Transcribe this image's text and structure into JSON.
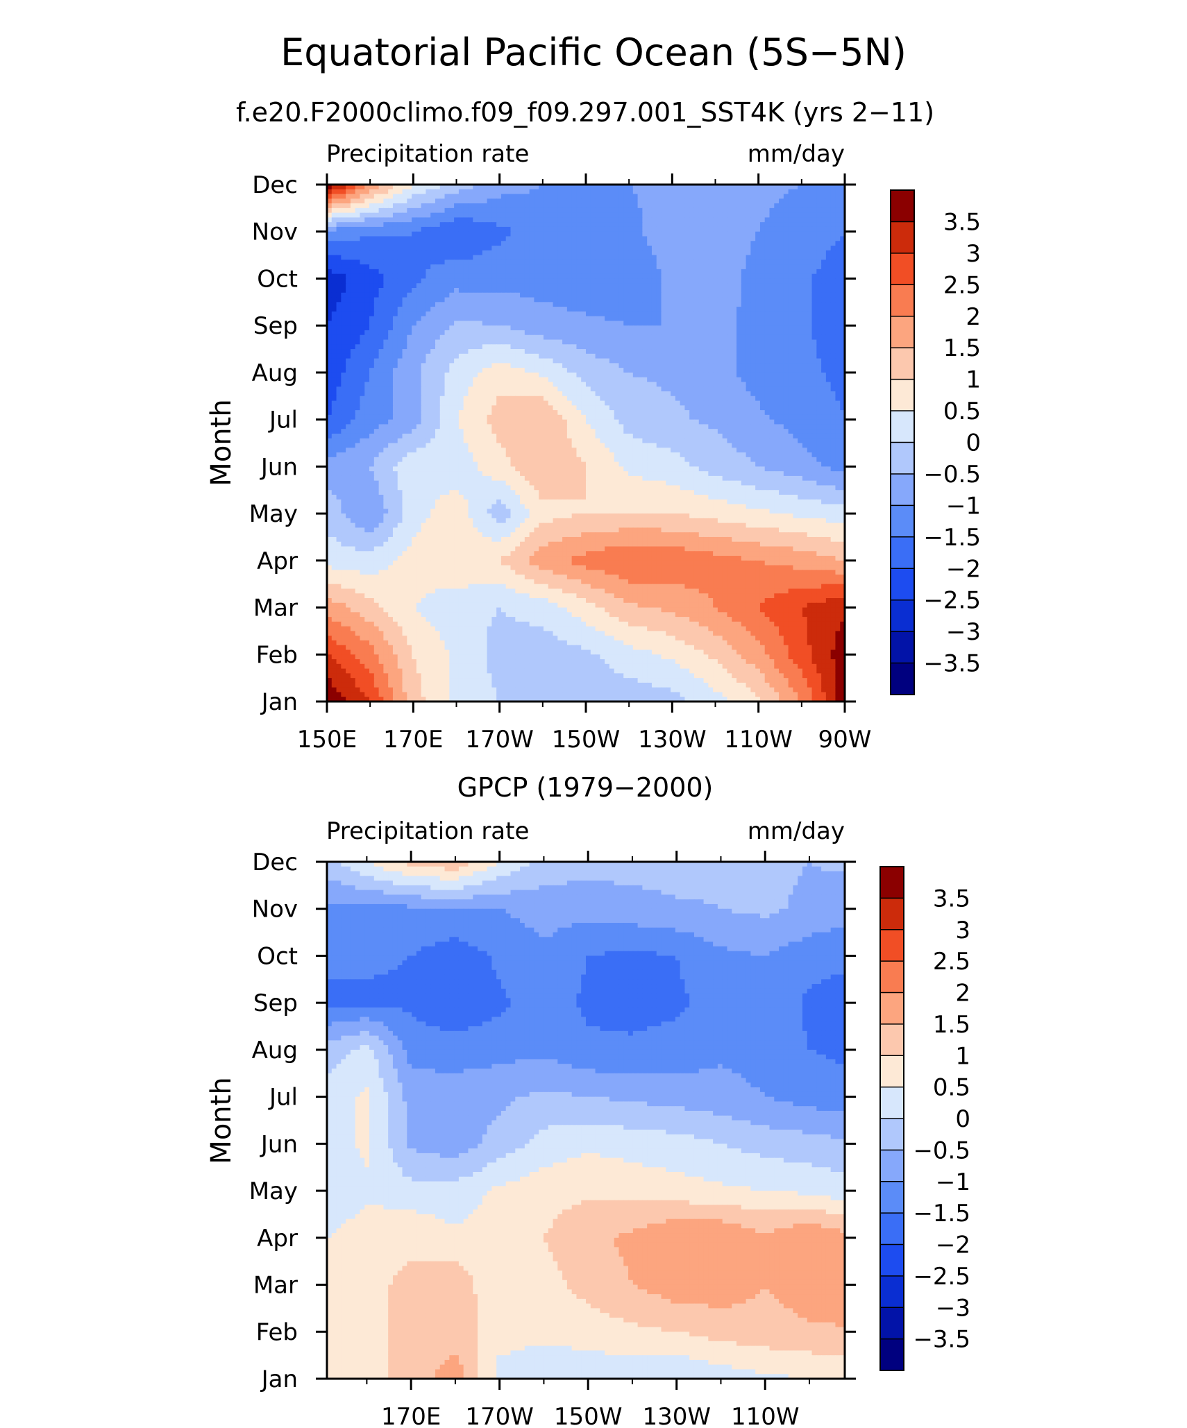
{
  "figure": {
    "title": "Equatorial Pacific Ocean (5S−5N)"
  },
  "chart_data": [
    {
      "type": "heatmap",
      "title": "f.e20.F2000climo.f09_f09.297.001_SST4K (yrs 2−11)",
      "left_label": "Precipitation rate",
      "right_label": "mm/day",
      "xlabel": "",
      "ylabel": "Month",
      "x_tick_labels": [
        "150E",
        "170E",
        "170W",
        "150W",
        "130W",
        "110W",
        "90W"
      ],
      "x_tick_values": [
        150,
        170,
        190,
        210,
        230,
        250,
        270
      ],
      "xlim": [
        150,
        270
      ],
      "y_tick_labels": [
        "Jan",
        "Feb",
        "Mar",
        "Apr",
        "May",
        "Jun",
        "Jul",
        "Aug",
        "Sep",
        "Oct",
        "Nov",
        "Dec"
      ],
      "colorbar_labels": [
        "3.5",
        "3",
        "2.5",
        "2",
        "1.5",
        "1",
        "0.5",
        "0",
        "−0.5",
        "−1",
        "−1.5",
        "−2",
        "−2.5",
        "−3",
        "−3.5"
      ],
      "x": [
        150,
        160,
        170,
        180,
        190,
        200,
        210,
        220,
        230,
        240,
        250,
        260,
        270
      ],
      "months": [
        "Jan",
        "Feb",
        "Mar",
        "Apr",
        "May",
        "Jun",
        "Jul",
        "Aug",
        "Sep",
        "Oct",
        "Nov",
        "Dec"
      ],
      "values": [
        [
          4.0,
          3.0,
          1.2,
          0.4,
          0.0,
          -0.3,
          -0.3,
          -0.3,
          -0.2,
          0.3,
          0.9,
          2.0,
          3.8
        ],
        [
          3.0,
          2.2,
          1.0,
          0.4,
          -0.2,
          -0.3,
          -0.1,
          0.3,
          0.6,
          1.1,
          1.8,
          2.8,
          3.8
        ],
        [
          1.8,
          1.2,
          0.5,
          0.2,
          0.0,
          0.2,
          0.8,
          1.4,
          1.6,
          2.0,
          2.5,
          3.0,
          3.4
        ],
        [
          0.3,
          0.2,
          0.7,
          0.9,
          1.0,
          1.8,
          2.2,
          2.5,
          2.4,
          2.2,
          2.0,
          1.8,
          1.5
        ],
        [
          -0.2,
          -1.0,
          0.3,
          0.8,
          -0.3,
          0.8,
          1.0,
          1.0,
          1.0,
          0.8,
          0.6,
          0.4,
          0.2
        ],
        [
          -0.8,
          -0.5,
          0.4,
          0.2,
          0.8,
          1.5,
          1.0,
          0.4,
          0.2,
          -0.2,
          -0.5,
          -0.8,
          -1.2
        ],
        [
          -2.0,
          -1.2,
          -0.8,
          0.5,
          1.2,
          1.5,
          0.5,
          -0.2,
          -0.4,
          -0.6,
          -0.9,
          -1.2,
          -1.5
        ],
        [
          -2.3,
          -1.5,
          -0.6,
          0.2,
          0.8,
          0.4,
          -0.2,
          -0.5,
          -0.6,
          -0.8,
          -1.2,
          -1.4,
          -1.6
        ],
        [
          -2.5,
          -2.0,
          -1.0,
          -0.4,
          -0.5,
          -0.8,
          -0.9,
          -1.0,
          -1.0,
          -0.8,
          -1.2,
          -1.4,
          -1.8
        ],
        [
          -2.8,
          -2.2,
          -1.6,
          -1.2,
          -1.2,
          -1.2,
          -1.3,
          -1.3,
          -0.9,
          -0.7,
          -1.2,
          -1.4,
          -1.8
        ],
        [
          -1.2,
          -1.4,
          -1.5,
          -2.0,
          -1.6,
          -1.3,
          -1.2,
          -1.1,
          -0.8,
          -0.7,
          -1.0,
          -1.2,
          -1.5
        ],
        [
          4.0,
          2.0,
          0.5,
          -0.2,
          -0.8,
          -1.0,
          -1.0,
          -1.0,
          -0.9,
          -0.8,
          -0.9,
          -1.0,
          -1.2
        ]
      ]
    },
    {
      "type": "heatmap",
      "title": "GPCP (1979−2000)",
      "left_label": "Precipitation rate",
      "right_label": "mm/day",
      "xlabel": "",
      "ylabel": "Month",
      "x_tick_labels": [
        "170E",
        "170W",
        "150W",
        "130W",
        "110W"
      ],
      "x_tick_values": [
        170,
        190,
        210,
        230,
        250
      ],
      "xlim": [
        151,
        268
      ],
      "y_tick_labels": [
        "Jan",
        "Feb",
        "Mar",
        "Apr",
        "May",
        "Jun",
        "Jul",
        "Aug",
        "Sep",
        "Oct",
        "Nov",
        "Dec"
      ],
      "colorbar_labels": [
        "3.5",
        "3",
        "2.5",
        "2",
        "1.5",
        "1",
        "0.5",
        "0",
        "−0.5",
        "−1",
        "−1.5",
        "−2",
        "−2.5",
        "−3",
        "−3.5"
      ],
      "x": [
        151,
        160,
        170,
        180,
        190,
        200,
        210,
        220,
        230,
        240,
        250,
        260,
        268
      ],
      "months": [
        "Jan",
        "Feb",
        "Mar",
        "Apr",
        "May",
        "Jun",
        "Jul",
        "Aug",
        "Sep",
        "Oct",
        "Nov",
        "Dec"
      ],
      "values": [
        [
          0.6,
          0.8,
          1.2,
          1.8,
          0.3,
          0.2,
          0.2,
          0.1,
          0.0,
          0.2,
          0.4,
          0.5,
          0.6
        ],
        [
          0.8,
          0.9,
          1.1,
          1.3,
          0.7,
          0.6,
          0.7,
          0.9,
          1.0,
          1.2,
          1.3,
          1.4,
          1.5
        ],
        [
          0.7,
          0.9,
          1.1,
          1.4,
          0.5,
          0.8,
          1.2,
          1.5,
          1.8,
          1.8,
          1.5,
          1.8,
          1.6
        ],
        [
          0.5,
          0.8,
          0.9,
          0.6,
          0.8,
          1.0,
          1.4,
          1.6,
          2.0,
          2.0,
          1.6,
          2.0,
          1.7
        ],
        [
          0.0,
          0.4,
          0.2,
          0.2,
          0.6,
          0.8,
          0.9,
          0.8,
          0.7,
          0.6,
          0.5,
          0.4,
          0.2
        ],
        [
          0.3,
          0.6,
          -0.6,
          -0.8,
          -0.3,
          0.2,
          0.4,
          0.3,
          0.2,
          0.0,
          -0.2,
          -0.3,
          -0.4
        ],
        [
          0.2,
          0.6,
          -0.7,
          -0.8,
          -0.6,
          -0.4,
          -0.5,
          -0.6,
          -0.7,
          -0.8,
          -1.0,
          -1.2,
          -1.3
        ],
        [
          -0.3,
          0.2,
          -1.2,
          -1.2,
          -1.2,
          -1.1,
          -1.4,
          -1.4,
          -1.3,
          -1.1,
          -1.2,
          -1.5,
          -1.6
        ],
        [
          -1.6,
          -1.6,
          -1.6,
          -2.0,
          -1.6,
          -1.2,
          -1.6,
          -1.7,
          -1.6,
          -1.3,
          -1.1,
          -1.6,
          -1.7
        ],
        [
          -1.4,
          -1.4,
          -1.5,
          -1.8,
          -1.4,
          -1.1,
          -1.5,
          -1.6,
          -1.5,
          -1.1,
          -1.0,
          -1.3,
          -1.4
        ],
        [
          -1.1,
          -1.2,
          -1.1,
          -1.0,
          -1.0,
          -0.8,
          -0.8,
          -0.7,
          -0.6,
          -0.5,
          -0.4,
          -0.6,
          -0.8
        ],
        [
          -0.2,
          0.5,
          1.2,
          1.4,
          0.5,
          -0.2,
          -0.3,
          -0.3,
          -0.2,
          -0.3,
          -0.4,
          -0.5,
          -0.4
        ]
      ]
    }
  ]
}
